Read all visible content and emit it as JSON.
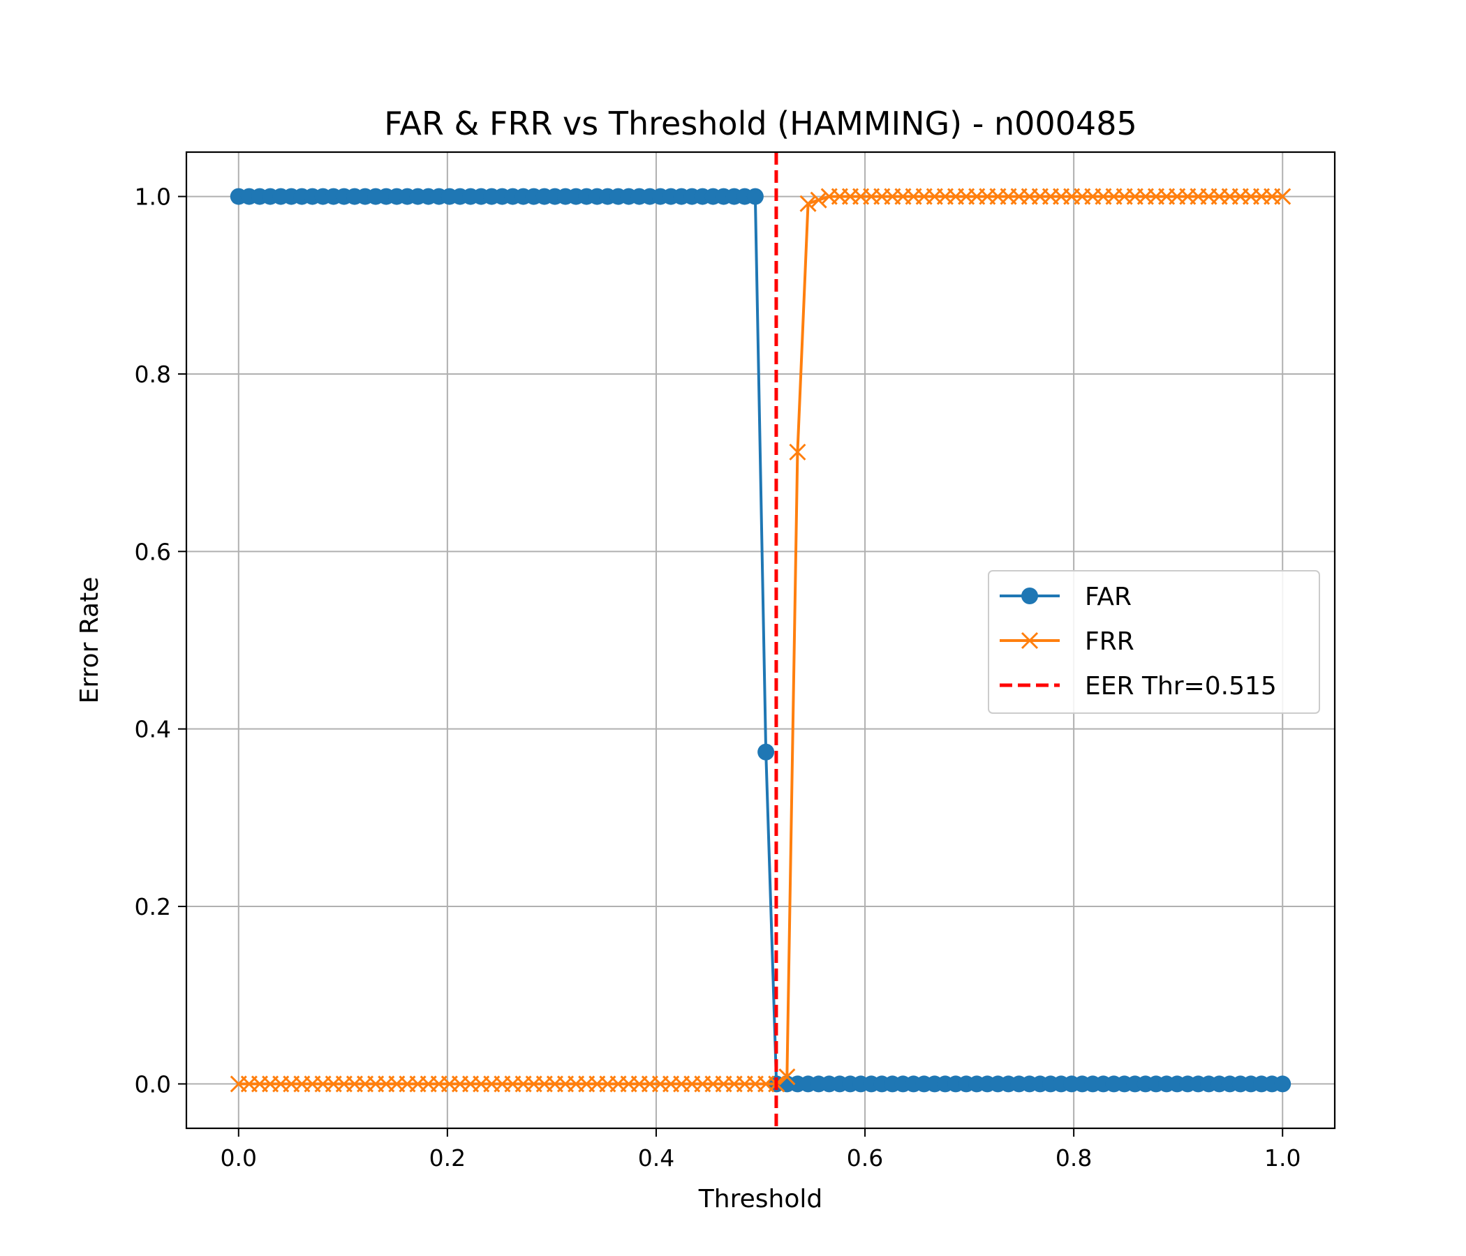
{
  "chart_data": {
    "type": "line",
    "title": "FAR & FRR vs Threshold (HAMMING) - n000485",
    "xlabel": "Threshold",
    "ylabel": "Error Rate",
    "xlim": [
      -0.05,
      1.05
    ],
    "ylim": [
      -0.05,
      1.05
    ],
    "xticks": [
      0.0,
      0.2,
      0.4,
      0.6,
      0.8,
      1.0
    ],
    "xtick_labels": [
      "0.0",
      "0.2",
      "0.4",
      "0.6",
      "0.8",
      "1.0"
    ],
    "yticks": [
      0.0,
      0.2,
      0.4,
      0.6,
      0.8,
      1.0
    ],
    "ytick_labels": [
      "0.0",
      "0.2",
      "0.4",
      "0.6",
      "0.8",
      "1.0"
    ],
    "grid": true,
    "legend_position": "center-right",
    "x": [
      0.0,
      0.0101,
      0.0202,
      0.0303,
      0.0404,
      0.0505,
      0.0606,
      0.0707,
      0.0808,
      0.0909,
      0.101,
      0.1111,
      0.1212,
      0.1313,
      0.1414,
      0.1515,
      0.1616,
      0.1717,
      0.1818,
      0.1919,
      0.202,
      0.2121,
      0.2222,
      0.2323,
      0.2424,
      0.2525,
      0.2626,
      0.2727,
      0.2828,
      0.2929,
      0.303,
      0.3131,
      0.3232,
      0.3333,
      0.3434,
      0.3535,
      0.3636,
      0.3737,
      0.3838,
      0.3939,
      0.404,
      0.4141,
      0.4242,
      0.4343,
      0.4444,
      0.4545,
      0.4646,
      0.4747,
      0.4848,
      0.4949,
      0.5051,
      0.5152,
      0.5253,
      0.5354,
      0.5455,
      0.5556,
      0.5657,
      0.5758,
      0.5859,
      0.596,
      0.6061,
      0.6162,
      0.6263,
      0.6364,
      0.6465,
      0.6566,
      0.6667,
      0.6768,
      0.6869,
      0.697,
      0.7071,
      0.7172,
      0.7273,
      0.7374,
      0.7475,
      0.7576,
      0.7677,
      0.7778,
      0.7879,
      0.798,
      0.8081,
      0.8182,
      0.8283,
      0.8384,
      0.8485,
      0.8586,
      0.8687,
      0.8788,
      0.8889,
      0.899,
      0.9091,
      0.9192,
      0.9293,
      0.9394,
      0.9495,
      0.9596,
      0.9697,
      0.9798,
      0.9899,
      1.0
    ],
    "series": [
      {
        "name": "FAR",
        "color": "#1f77b4",
        "marker": "circle",
        "values": [
          1,
          1,
          1,
          1,
          1,
          1,
          1,
          1,
          1,
          1,
          1,
          1,
          1,
          1,
          1,
          1,
          1,
          1,
          1,
          1,
          1,
          1,
          1,
          1,
          1,
          1,
          1,
          1,
          1,
          1,
          1,
          1,
          1,
          1,
          1,
          1,
          1,
          1,
          1,
          1,
          1,
          1,
          1,
          1,
          1,
          1,
          1,
          1,
          1,
          1,
          0.374,
          0,
          0,
          0,
          0,
          0,
          0,
          0,
          0,
          0,
          0,
          0,
          0,
          0,
          0,
          0,
          0,
          0,
          0,
          0,
          0,
          0,
          0,
          0,
          0,
          0,
          0,
          0,
          0,
          0,
          0,
          0,
          0,
          0,
          0,
          0,
          0,
          0,
          0,
          0,
          0,
          0,
          0,
          0,
          0,
          0,
          0,
          0,
          0,
          0
        ]
      },
      {
        "name": "FRR",
        "color": "#ff7f0e",
        "marker": "x",
        "values": [
          0,
          0,
          0,
          0,
          0,
          0,
          0,
          0,
          0,
          0,
          0,
          0,
          0,
          0,
          0,
          0,
          0,
          0,
          0,
          0,
          0,
          0,
          0,
          0,
          0,
          0,
          0,
          0,
          0,
          0,
          0,
          0,
          0,
          0,
          0,
          0,
          0,
          0,
          0,
          0,
          0,
          0,
          0,
          0,
          0,
          0,
          0,
          0,
          0,
          0,
          0,
          0,
          0.008,
          0.712,
          0.992,
          0.996,
          1,
          1,
          1,
          1,
          1,
          1,
          1,
          1,
          1,
          1,
          1,
          1,
          1,
          1,
          1,
          1,
          1,
          1,
          1,
          1,
          1,
          1,
          1,
          1,
          1,
          1,
          1,
          1,
          1,
          1,
          1,
          1,
          1,
          1,
          1,
          1,
          1,
          1,
          1,
          1,
          1,
          1,
          1,
          1
        ]
      }
    ],
    "reference_lines": [
      {
        "name": "EER Thr=0.515",
        "orientation": "vertical",
        "x": 0.515,
        "color": "#ff0000",
        "style": "dashed"
      }
    ],
    "legend": [
      "FAR",
      "FRR",
      "EER Thr=0.515"
    ]
  }
}
